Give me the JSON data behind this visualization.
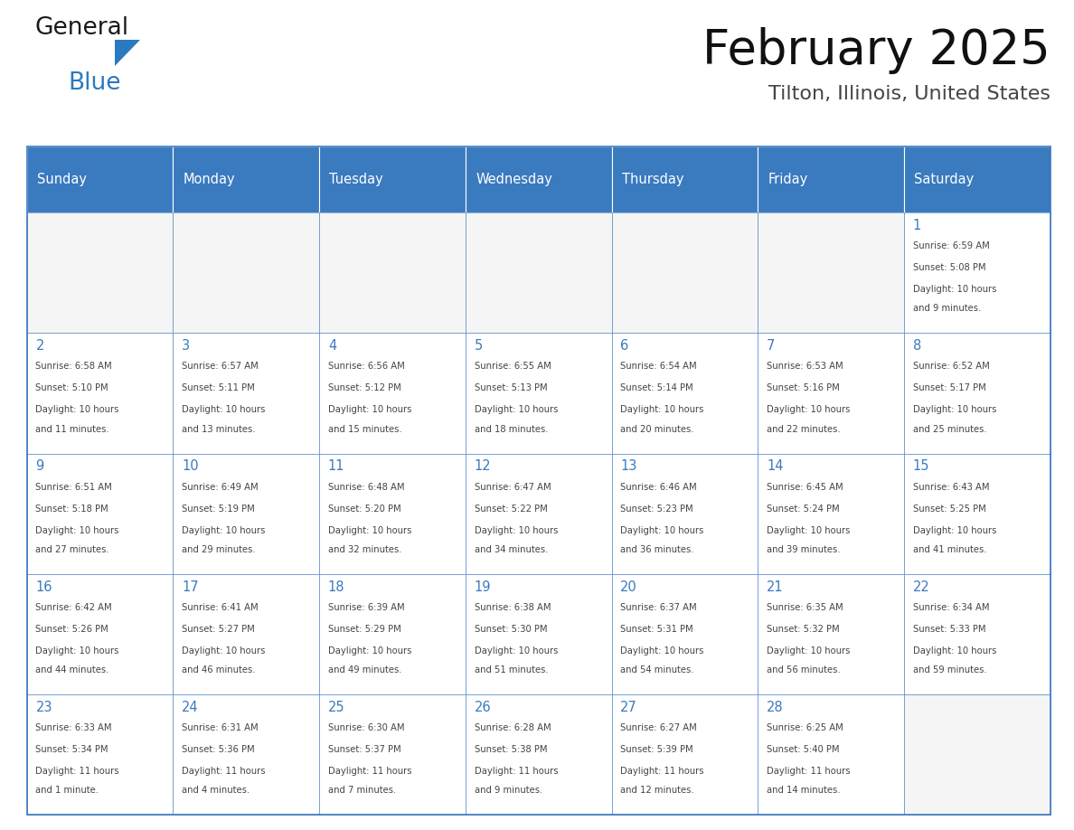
{
  "title": "February 2025",
  "subtitle": "Tilton, Illinois, United States",
  "header_color": "#3a7abf",
  "header_text_color": "#ffffff",
  "cell_bg_color": "#ffffff",
  "cell_bg_alt": "#f2f2f2",
  "cell_border_color": "#3a7abf",
  "day_number_color": "#3a7abf",
  "text_color": "#444444",
  "days_of_week": [
    "Sunday",
    "Monday",
    "Tuesday",
    "Wednesday",
    "Thursday",
    "Friday",
    "Saturday"
  ],
  "calendar_data": [
    [
      null,
      null,
      null,
      null,
      null,
      null,
      {
        "day": 1,
        "sunrise": "6:59 AM",
        "sunset": "5:08 PM",
        "daylight_line1": "Daylight: 10 hours",
        "daylight_line2": "and 9 minutes."
      }
    ],
    [
      {
        "day": 2,
        "sunrise": "6:58 AM",
        "sunset": "5:10 PM",
        "daylight_line1": "Daylight: 10 hours",
        "daylight_line2": "and 11 minutes."
      },
      {
        "day": 3,
        "sunrise": "6:57 AM",
        "sunset": "5:11 PM",
        "daylight_line1": "Daylight: 10 hours",
        "daylight_line2": "and 13 minutes."
      },
      {
        "day": 4,
        "sunrise": "6:56 AM",
        "sunset": "5:12 PM",
        "daylight_line1": "Daylight: 10 hours",
        "daylight_line2": "and 15 minutes."
      },
      {
        "day": 5,
        "sunrise": "6:55 AM",
        "sunset": "5:13 PM",
        "daylight_line1": "Daylight: 10 hours",
        "daylight_line2": "and 18 minutes."
      },
      {
        "day": 6,
        "sunrise": "6:54 AM",
        "sunset": "5:14 PM",
        "daylight_line1": "Daylight: 10 hours",
        "daylight_line2": "and 20 minutes."
      },
      {
        "day": 7,
        "sunrise": "6:53 AM",
        "sunset": "5:16 PM",
        "daylight_line1": "Daylight: 10 hours",
        "daylight_line2": "and 22 minutes."
      },
      {
        "day": 8,
        "sunrise": "6:52 AM",
        "sunset": "5:17 PM",
        "daylight_line1": "Daylight: 10 hours",
        "daylight_line2": "and 25 minutes."
      }
    ],
    [
      {
        "day": 9,
        "sunrise": "6:51 AM",
        "sunset": "5:18 PM",
        "daylight_line1": "Daylight: 10 hours",
        "daylight_line2": "and 27 minutes."
      },
      {
        "day": 10,
        "sunrise": "6:49 AM",
        "sunset": "5:19 PM",
        "daylight_line1": "Daylight: 10 hours",
        "daylight_line2": "and 29 minutes."
      },
      {
        "day": 11,
        "sunrise": "6:48 AM",
        "sunset": "5:20 PM",
        "daylight_line1": "Daylight: 10 hours",
        "daylight_line2": "and 32 minutes."
      },
      {
        "day": 12,
        "sunrise": "6:47 AM",
        "sunset": "5:22 PM",
        "daylight_line1": "Daylight: 10 hours",
        "daylight_line2": "and 34 minutes."
      },
      {
        "day": 13,
        "sunrise": "6:46 AM",
        "sunset": "5:23 PM",
        "daylight_line1": "Daylight: 10 hours",
        "daylight_line2": "and 36 minutes."
      },
      {
        "day": 14,
        "sunrise": "6:45 AM",
        "sunset": "5:24 PM",
        "daylight_line1": "Daylight: 10 hours",
        "daylight_line2": "and 39 minutes."
      },
      {
        "day": 15,
        "sunrise": "6:43 AM",
        "sunset": "5:25 PM",
        "daylight_line1": "Daylight: 10 hours",
        "daylight_line2": "and 41 minutes."
      }
    ],
    [
      {
        "day": 16,
        "sunrise": "6:42 AM",
        "sunset": "5:26 PM",
        "daylight_line1": "Daylight: 10 hours",
        "daylight_line2": "and 44 minutes."
      },
      {
        "day": 17,
        "sunrise": "6:41 AM",
        "sunset": "5:27 PM",
        "daylight_line1": "Daylight: 10 hours",
        "daylight_line2": "and 46 minutes."
      },
      {
        "day": 18,
        "sunrise": "6:39 AM",
        "sunset": "5:29 PM",
        "daylight_line1": "Daylight: 10 hours",
        "daylight_line2": "and 49 minutes."
      },
      {
        "day": 19,
        "sunrise": "6:38 AM",
        "sunset": "5:30 PM",
        "daylight_line1": "Daylight: 10 hours",
        "daylight_line2": "and 51 minutes."
      },
      {
        "day": 20,
        "sunrise": "6:37 AM",
        "sunset": "5:31 PM",
        "daylight_line1": "Daylight: 10 hours",
        "daylight_line2": "and 54 minutes."
      },
      {
        "day": 21,
        "sunrise": "6:35 AM",
        "sunset": "5:32 PM",
        "daylight_line1": "Daylight: 10 hours",
        "daylight_line2": "and 56 minutes."
      },
      {
        "day": 22,
        "sunrise": "6:34 AM",
        "sunset": "5:33 PM",
        "daylight_line1": "Daylight: 10 hours",
        "daylight_line2": "and 59 minutes."
      }
    ],
    [
      {
        "day": 23,
        "sunrise": "6:33 AM",
        "sunset": "5:34 PM",
        "daylight_line1": "Daylight: 11 hours",
        "daylight_line2": "and 1 minute."
      },
      {
        "day": 24,
        "sunrise": "6:31 AM",
        "sunset": "5:36 PM",
        "daylight_line1": "Daylight: 11 hours",
        "daylight_line2": "and 4 minutes."
      },
      {
        "day": 25,
        "sunrise": "6:30 AM",
        "sunset": "5:37 PM",
        "daylight_line1": "Daylight: 11 hours",
        "daylight_line2": "and 7 minutes."
      },
      {
        "day": 26,
        "sunrise": "6:28 AM",
        "sunset": "5:38 PM",
        "daylight_line1": "Daylight: 11 hours",
        "daylight_line2": "and 9 minutes."
      },
      {
        "day": 27,
        "sunrise": "6:27 AM",
        "sunset": "5:39 PM",
        "daylight_line1": "Daylight: 11 hours",
        "daylight_line2": "and 12 minutes."
      },
      {
        "day": 28,
        "sunrise": "6:25 AM",
        "sunset": "5:40 PM",
        "daylight_line1": "Daylight: 11 hours",
        "daylight_line2": "and 14 minutes."
      },
      null
    ]
  ],
  "logo_general_color": "#1a1a1a",
  "logo_blue_color": "#2a7abf",
  "fig_width": 11.88,
  "fig_height": 9.18
}
